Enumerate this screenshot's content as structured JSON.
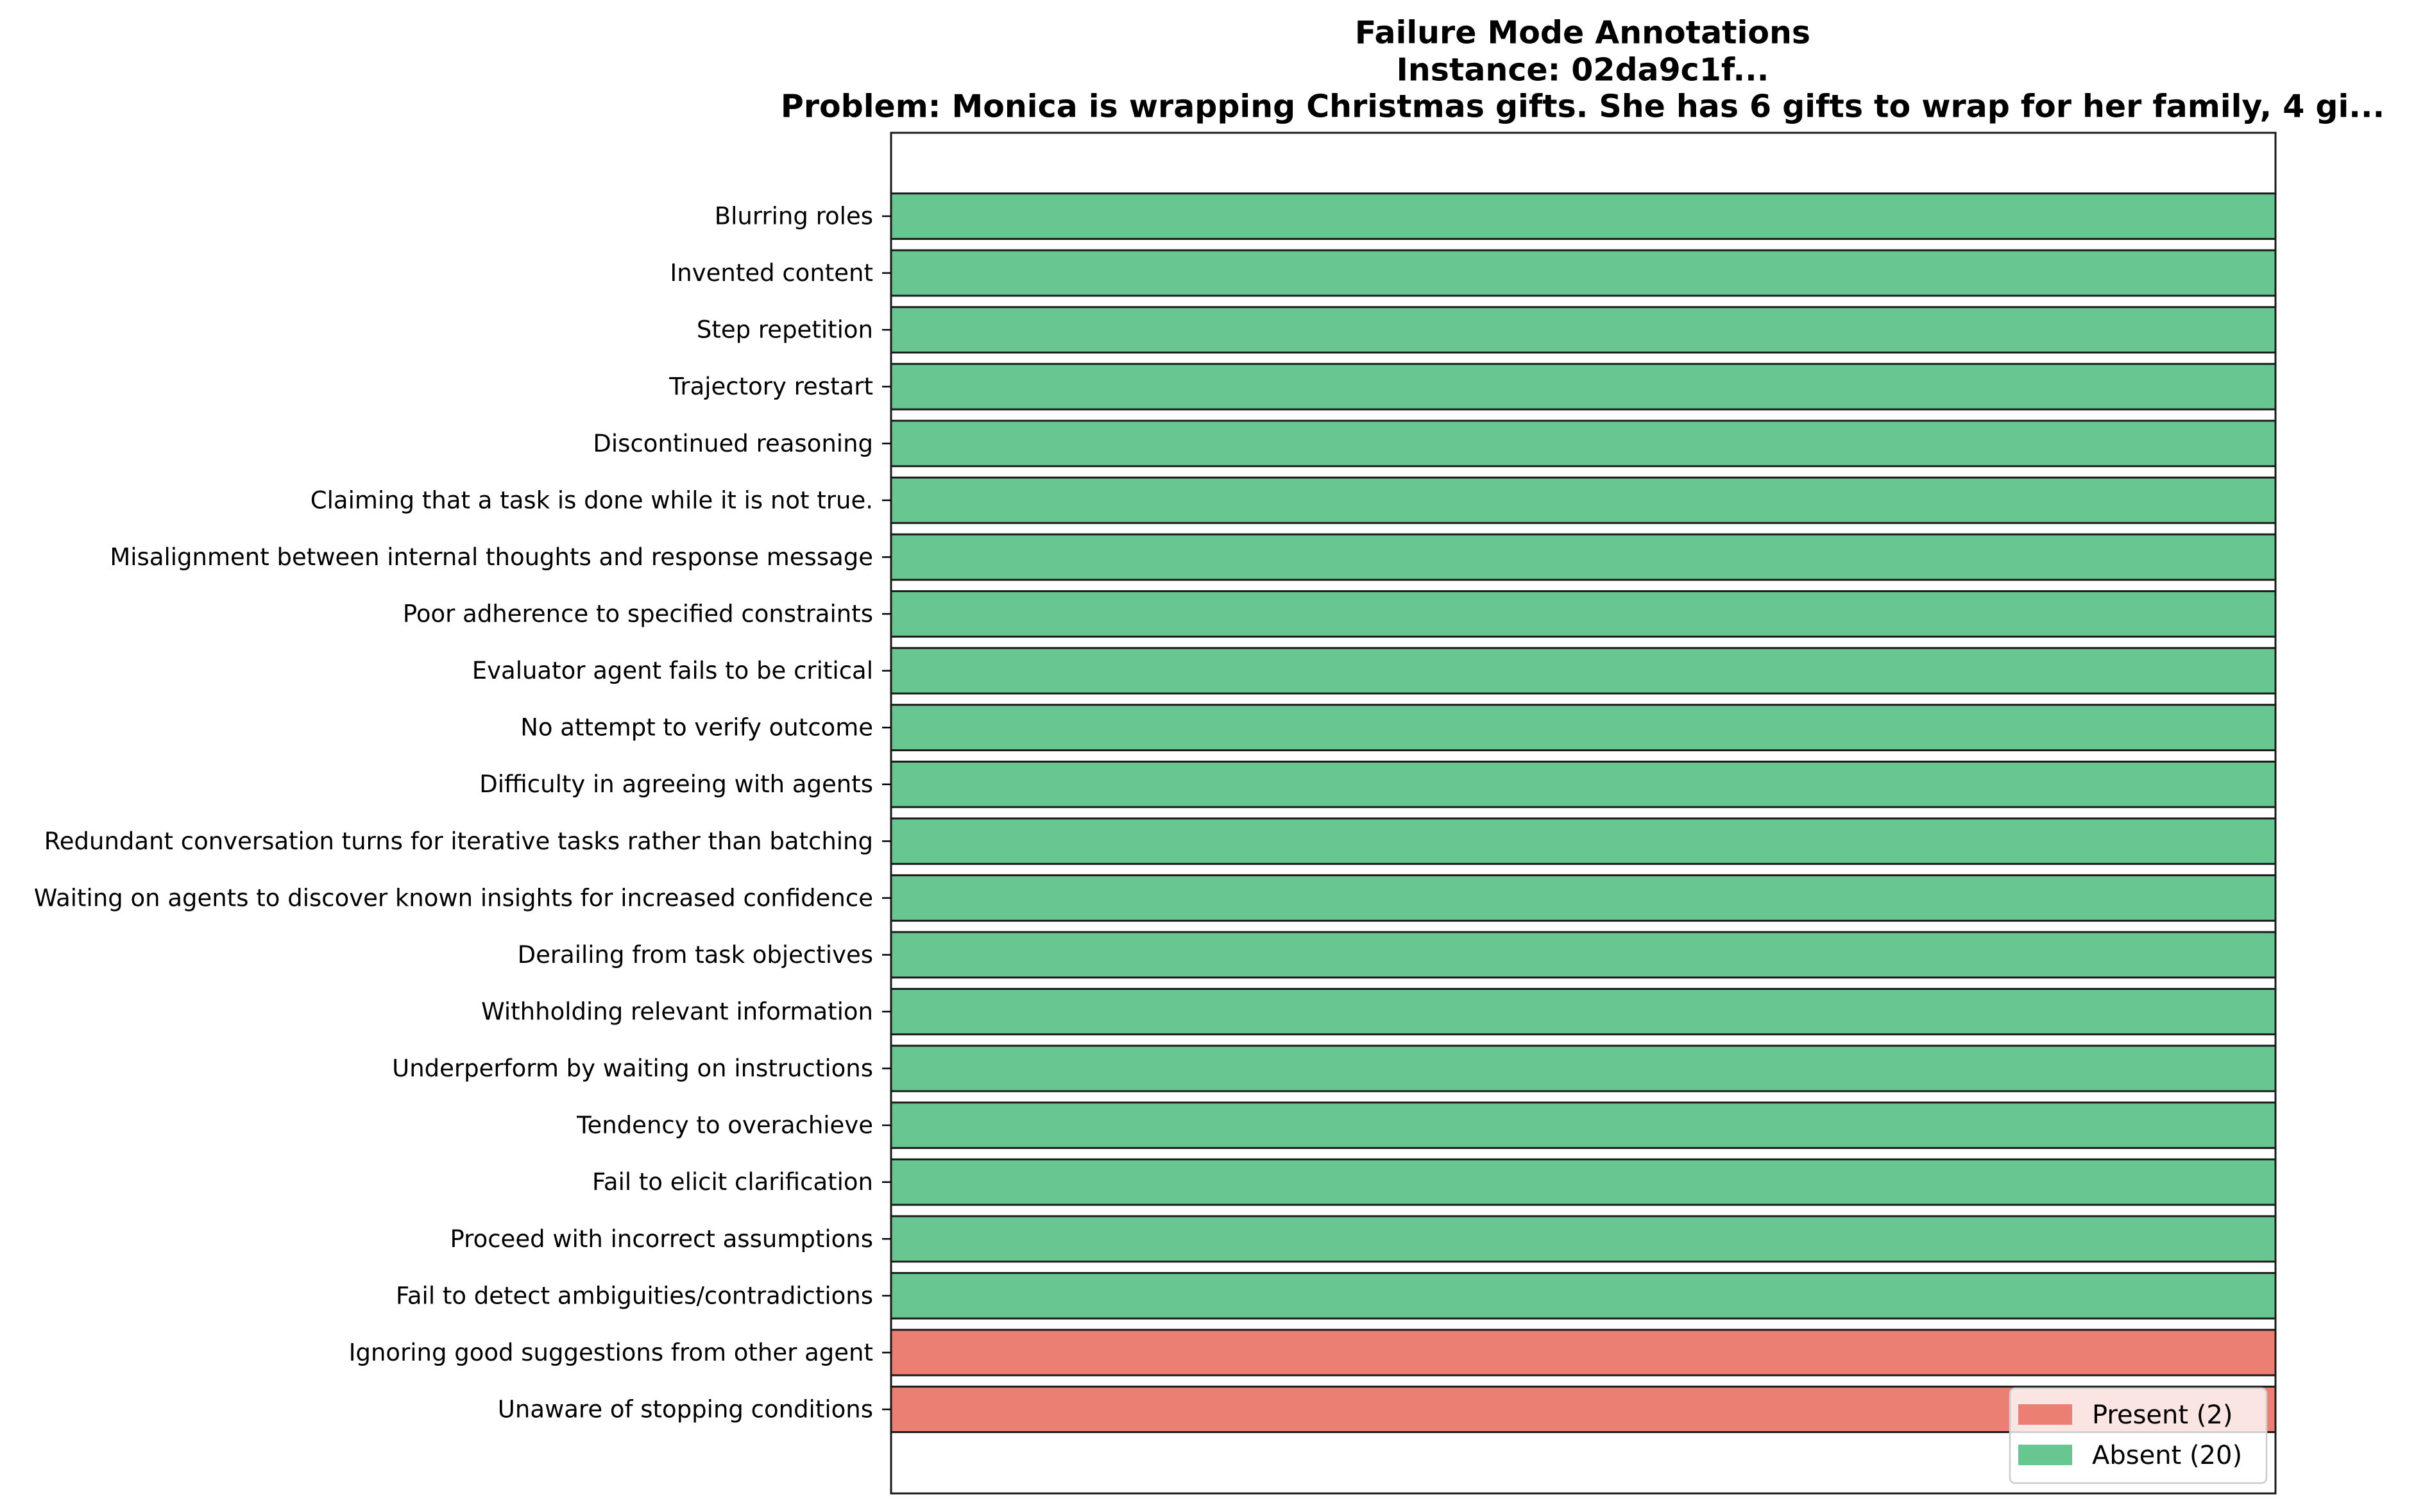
{
  "chart_data": {
    "type": "bar",
    "orientation": "horizontal",
    "title_lines": [
      "Failure Mode Annotations",
      "Instance: 02da9c1f...",
      "Problem: Monica is wrapping Christmas gifts. She has 6 gifts to wrap for her family, 4 gi..."
    ],
    "xlabel": "",
    "ylabel": "",
    "xlim": [
      0,
      1
    ],
    "grid": false,
    "categories": [
      "Blurring roles",
      "Invented content",
      "Step repetition",
      "Trajectory restart",
      "Discontinued reasoning",
      "Claiming that a task is done while it is not true.",
      "Misalignment between internal thoughts and response message",
      "Poor adherence to specified constraints",
      "Evaluator agent fails to be critical",
      "No attempt to verify outcome",
      "Difficulty in agreeing with agents",
      "Redundant conversation turns for iterative tasks rather than batching",
      "Waiting on agents to discover known insights for increased confidence",
      "Derailing from task objectives",
      "Withholding relevant information",
      "Underperform by waiting on instructions",
      "Tendency to overachieve",
      "Fail to elicit clarification",
      "Proceed with incorrect assumptions",
      "Fail to detect ambiguities/contradictions",
      "Ignoring good suggestions from other agent",
      "Unaware of stopping conditions"
    ],
    "values": [
      1,
      1,
      1,
      1,
      1,
      1,
      1,
      1,
      1,
      1,
      1,
      1,
      1,
      1,
      1,
      1,
      1,
      1,
      1,
      1,
      1,
      1
    ],
    "status": [
      "absent",
      "absent",
      "absent",
      "absent",
      "absent",
      "absent",
      "absent",
      "absent",
      "absent",
      "absent",
      "absent",
      "absent",
      "absent",
      "absent",
      "absent",
      "absent",
      "absent",
      "absent",
      "absent",
      "absent",
      "present",
      "present"
    ],
    "colors": {
      "present": "#ec7f73",
      "absent": "#68c690",
      "edge": "#1a1a1a"
    },
    "legend": {
      "placement": "lower-right",
      "entries": [
        {
          "key": "present",
          "label": "Present (2)"
        },
        {
          "key": "absent",
          "label": "Absent (20)"
        }
      ]
    }
  }
}
